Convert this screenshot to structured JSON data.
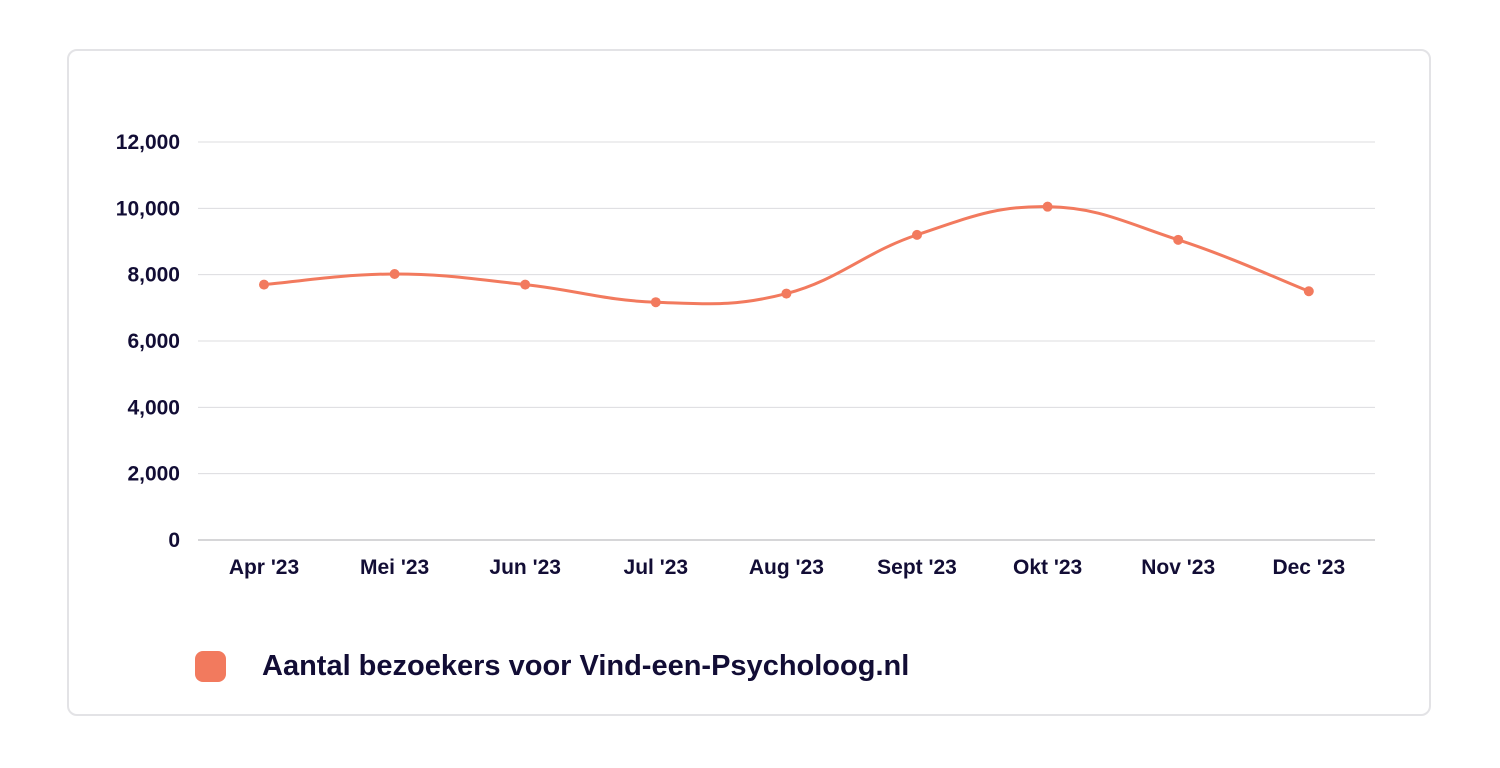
{
  "chart_data": {
    "type": "line",
    "title": "",
    "xlabel": "",
    "ylabel": "",
    "categories": [
      "Apr '23",
      "Mei '23",
      "Jun '23",
      "Jul '23",
      "Aug '23",
      "Sept '23",
      "Okt '23",
      "Nov '23",
      "Dec '23"
    ],
    "series": [
      {
        "name": "Aantal bezoekers voor Vind-een-Psycholoog.nl",
        "color": "#f27a5e",
        "values": [
          7700,
          8020,
          7700,
          7170,
          7430,
          9200,
          10050,
          9050,
          7500
        ]
      }
    ],
    "ylim": [
      0,
      12000
    ],
    "yticks": [
      0,
      2000,
      4000,
      6000,
      8000,
      10000,
      12000
    ],
    "ytick_labels": [
      "0",
      "2,000",
      "4,000",
      "6,000",
      "8,000",
      "10,000",
      "12,000"
    ],
    "grid": true,
    "smooth": true,
    "legend_position": "bottom-left"
  },
  "legend": {
    "label": "Aantal bezoekers voor Vind-een-Psycholoog.nl",
    "color": "#f27a5e"
  },
  "colors": {
    "grid": "#dcdcdf",
    "axis": "#c8c8cc",
    "text": "#120d35",
    "card_border": "#e3e3e6"
  }
}
